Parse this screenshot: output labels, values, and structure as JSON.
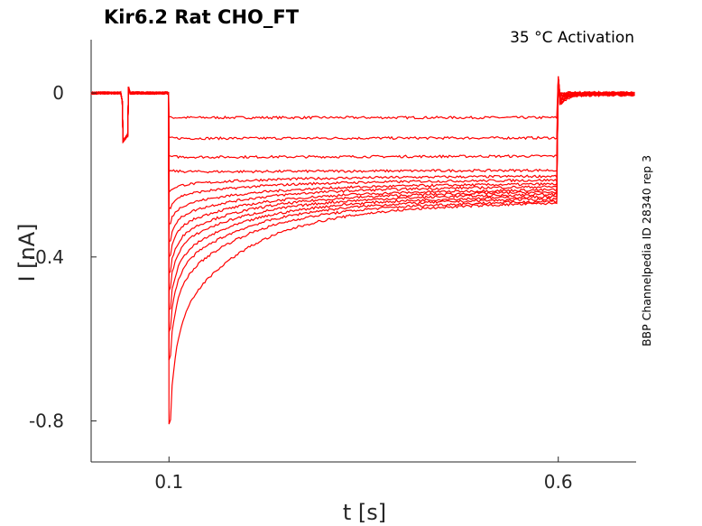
{
  "chart_data": {
    "type": "line",
    "title": "Kir6.2  Rat  CHO_FT",
    "annotation": "35 °C  Activation",
    "side_note": "BBP Channelpedia ID 28340 rep 3",
    "xlabel": "t [s]",
    "ylabel": "I [nA]",
    "xlim": [
      0.0,
      0.7
    ],
    "ylim": [
      -0.9,
      0.13
    ],
    "x_ticks": [
      {
        "value": 0.1,
        "label": "0.1"
      },
      {
        "value": 0.6,
        "label": "0.6"
      }
    ],
    "y_ticks": [
      {
        "value": 0,
        "label": "0"
      },
      {
        "value": -0.4,
        "label": "-0.4"
      },
      {
        "value": -0.8,
        "label": "-0.8"
      }
    ],
    "grid": false,
    "line_color": "#ff0000",
    "protocol": {
      "prepulse_start": 0.04,
      "prepulse_end": 0.048,
      "prepulse_level": -0.12,
      "step_start": 0.1,
      "step_end": 0.6,
      "tail_end": 0.7
    },
    "series": [
      {
        "peak": -0.06,
        "steady": -0.06
      },
      {
        "peak": -0.11,
        "steady": -0.11
      },
      {
        "peak": -0.155,
        "steady": -0.155
      },
      {
        "peak": -0.19,
        "steady": -0.19
      },
      {
        "peak": -0.24,
        "steady": -0.205
      },
      {
        "peak": -0.28,
        "steady": -0.215
      },
      {
        "peak": -0.32,
        "steady": -0.225
      },
      {
        "peak": -0.36,
        "steady": -0.232
      },
      {
        "peak": -0.4,
        "steady": -0.24
      },
      {
        "peak": -0.44,
        "steady": -0.246
      },
      {
        "peak": -0.48,
        "steady": -0.252
      },
      {
        "peak": -0.53,
        "steady": -0.258
      },
      {
        "peak": -0.58,
        "steady": -0.264
      },
      {
        "peak": -0.65,
        "steady": -0.27
      },
      {
        "peak": -0.81,
        "steady": -0.275
      }
    ]
  }
}
